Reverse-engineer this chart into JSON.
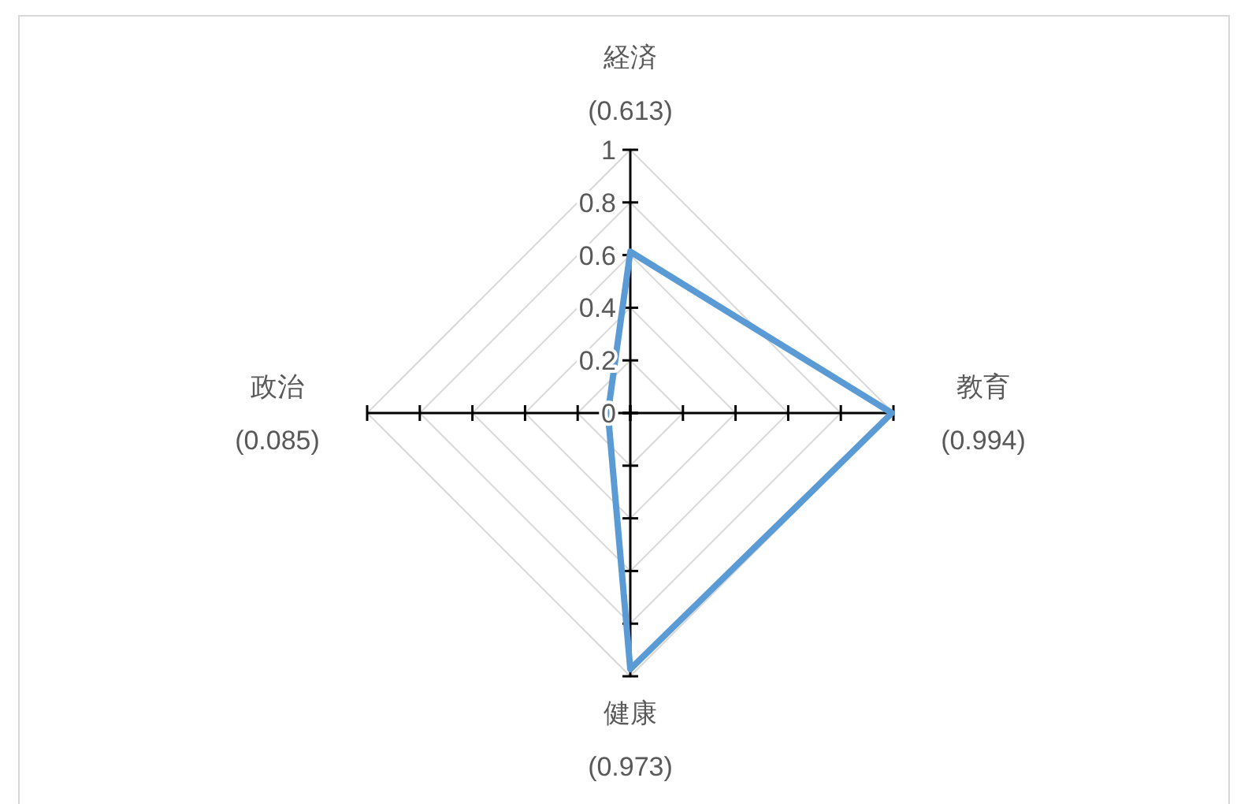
{
  "chart_data": {
    "type": "radar",
    "categories": [
      "経済",
      "教育",
      "健康",
      "政治"
    ],
    "series": [
      {
        "color": "#5b9bd5",
        "values": [
          0.613,
          0.994,
          0.973,
          0.085
        ]
      }
    ],
    "value_labels": [
      "(0.613)",
      "(0.994)",
      "(0.973)",
      "(0.085)"
    ],
    "ylim": [
      0,
      1
    ],
    "yticks": [
      0,
      0.2,
      0.4,
      0.6,
      0.8,
      1
    ],
    "grid": true,
    "line_style": "solid",
    "marker": "none"
  }
}
